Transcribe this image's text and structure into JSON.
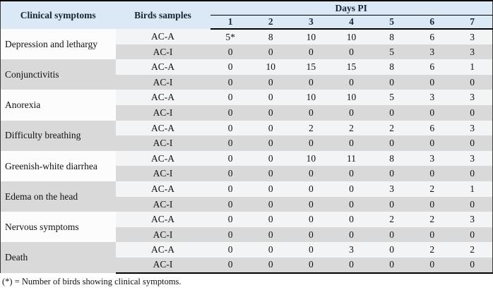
{
  "table": {
    "columns": {
      "clinical_symptoms": "Clinical symptoms",
      "birds_samples": "Birds samples",
      "days_group": "Days PI",
      "days": [
        "1",
        "2",
        "3",
        "4",
        "5",
        "6",
        "7"
      ]
    },
    "groups": [
      {
        "symptom": "Depression and lethargy",
        "rows": [
          {
            "sample": "AC-A",
            "values": [
              "5*",
              "8",
              "10",
              "10",
              "8",
              "6",
              "3"
            ]
          },
          {
            "sample": "AC-I",
            "values": [
              "0",
              "0",
              "0",
              "0",
              "5",
              "3",
              "3"
            ]
          }
        ]
      },
      {
        "symptom": "Conjunctivitis",
        "rows": [
          {
            "sample": "AC-A",
            "values": [
              "0",
              "10",
              "15",
              "15",
              "8",
              "6",
              "1"
            ]
          },
          {
            "sample": "AC-I",
            "values": [
              "0",
              "0",
              "0",
              "0",
              "0",
              "0",
              "0"
            ]
          }
        ]
      },
      {
        "symptom": "Anorexia",
        "rows": [
          {
            "sample": "AC-A",
            "values": [
              "0",
              "0",
              "10",
              "10",
              "5",
              "3",
              "3"
            ]
          },
          {
            "sample": "AC-I",
            "values": [
              "0",
              "0",
              "0",
              "0",
              "0",
              "0",
              "0"
            ]
          }
        ]
      },
      {
        "symptom": "Difficulty breathing",
        "rows": [
          {
            "sample": "AC-A",
            "values": [
              "0",
              "0",
              "2",
              "2",
              "2",
              "6",
              "3"
            ]
          },
          {
            "sample": "AC-I",
            "values": [
              "0",
              "0",
              "0",
              "0",
              "0",
              "0",
              "0"
            ]
          }
        ]
      },
      {
        "symptom": "Greenish-white diarrhea",
        "rows": [
          {
            "sample": "AC-A",
            "values": [
              "0",
              "0",
              "10",
              "11",
              "8",
              "3",
              "3"
            ]
          },
          {
            "sample": "AC-I",
            "values": [
              "0",
              "0",
              "0",
              "0",
              "0",
              "0",
              "0"
            ]
          }
        ]
      },
      {
        "symptom": "Edema on the head",
        "rows": [
          {
            "sample": "AC-A",
            "values": [
              "0",
              "0",
              "0",
              "0",
              "3",
              "2",
              "1"
            ]
          },
          {
            "sample": "AC-I",
            "values": [
              "0",
              "0",
              "0",
              "0",
              "0",
              "0",
              "0"
            ]
          }
        ]
      },
      {
        "symptom": "Nervous symptoms",
        "rows": [
          {
            "sample": "AC-A",
            "values": [
              "0",
              "0",
              "0",
              "0",
              "2",
              "2",
              "3"
            ]
          },
          {
            "sample": "AC-I",
            "values": [
              "0",
              "0",
              "0",
              "0",
              "0",
              "0",
              "0"
            ]
          }
        ]
      },
      {
        "symptom": "Death",
        "rows": [
          {
            "sample": "AC-A",
            "values": [
              "0",
              "0",
              "0",
              "3",
              "0",
              "2",
              "2"
            ]
          },
          {
            "sample": "AC-I",
            "values": [
              "0",
              "0",
              "0",
              "0",
              "0",
              "0",
              "0"
            ]
          }
        ]
      }
    ],
    "footnote": "(*) = Number of birds showing clinical symptoms.",
    "colors": {
      "header_bg": "#dbe8f5",
      "header_text": "#1b2437",
      "row_gray": "#d9d9d9",
      "row_light": "#f3f4f5",
      "label_light": "#fcfcfc",
      "border_dark": "#000000",
      "page_bg": "#ffffff"
    }
  }
}
